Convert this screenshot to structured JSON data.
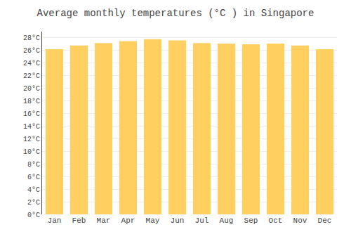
{
  "chart_data": {
    "type": "bar",
    "title": "Average monthly temperatures (°C ) in Singapore",
    "categories": [
      "Jan",
      "Feb",
      "Mar",
      "Apr",
      "May",
      "Jun",
      "Jul",
      "Aug",
      "Sep",
      "Oct",
      "Nov",
      "Dec"
    ],
    "values": [
      26.2,
      26.8,
      27.2,
      27.5,
      27.8,
      27.6,
      27.2,
      27.1,
      27.0,
      27.1,
      26.8,
      26.2
    ],
    "color": "#FFD060",
    "ylim": [
      0,
      29
    ],
    "yticks": [
      {
        "value": 0,
        "label": "0°C"
      },
      {
        "value": 2,
        "label": "2°C"
      },
      {
        "value": 4,
        "label": "4°C"
      },
      {
        "value": 6,
        "label": "6°C"
      },
      {
        "value": 8,
        "label": "8°C"
      },
      {
        "value": 10,
        "label": "10°C"
      },
      {
        "value": 12,
        "label": "12°C"
      },
      {
        "value": 14,
        "label": "14°C"
      },
      {
        "value": 16,
        "label": "16°C"
      },
      {
        "value": 18,
        "label": "18°C"
      },
      {
        "value": 20,
        "label": "20°C"
      },
      {
        "value": 22,
        "label": "22°C"
      },
      {
        "value": 24,
        "label": "24°C"
      },
      {
        "value": 26,
        "label": "26°C"
      },
      {
        "value": 28,
        "label": "28°C"
      }
    ],
    "grid": true
  }
}
